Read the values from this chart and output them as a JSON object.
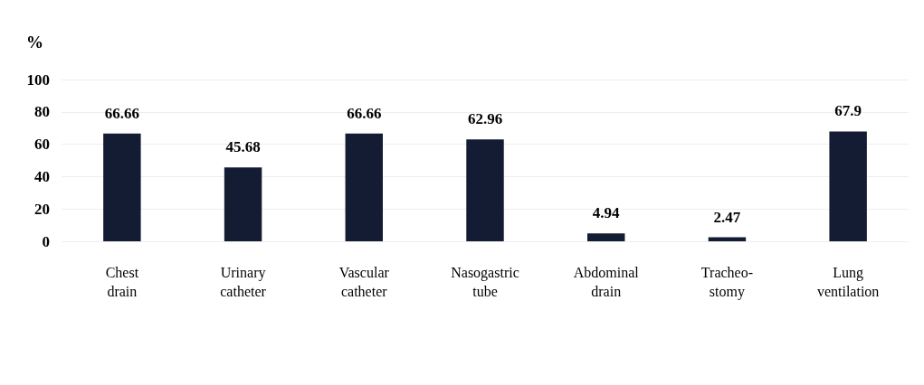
{
  "chart_data": {
    "type": "bar",
    "ylabel": "%",
    "categories": [
      "Chest\ndrain",
      "Urinary\ncatheter",
      "Vascular\ncatheter",
      "Nasogastric\ntube",
      "Abdominal\ndrain",
      "Tracheo-\nstomy",
      "Lung\nventilation"
    ],
    "values": [
      66.66,
      45.68,
      66.66,
      62.96,
      4.94,
      2.47,
      67.9
    ],
    "color": "#131c33",
    "ylim": [
      0,
      100
    ],
    "yticks": [
      0,
      20,
      40,
      60,
      80,
      100
    ],
    "grid": "y",
    "data_labels": true
  }
}
